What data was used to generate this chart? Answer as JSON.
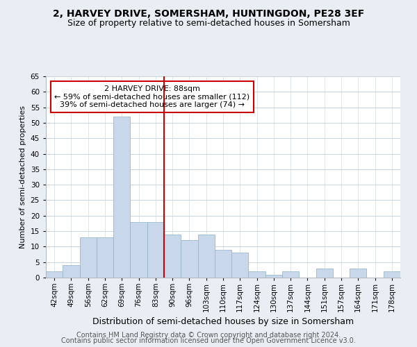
{
  "title1": "2, HARVEY DRIVE, SOMERSHAM, HUNTINGDON, PE28 3EF",
  "title2": "Size of property relative to semi-detached houses in Somersham",
  "xlabel": "Distribution of semi-detached houses by size in Somersham",
  "ylabel": "Number of semi-detached properties",
  "footer1": "Contains HM Land Registry data © Crown copyright and database right 2024.",
  "footer2": "Contains public sector information licensed under the Open Government Licence v3.0.",
  "bin_labels": [
    "42sqm",
    "49sqm",
    "56sqm",
    "62sqm",
    "69sqm",
    "76sqm",
    "83sqm",
    "90sqm",
    "96sqm",
    "103sqm",
    "110sqm",
    "117sqm",
    "124sqm",
    "130sqm",
    "137sqm",
    "144sqm",
    "151sqm",
    "157sqm",
    "164sqm",
    "171sqm",
    "178sqm"
  ],
  "bar_values": [
    2,
    4,
    13,
    13,
    52,
    18,
    18,
    14,
    12,
    14,
    9,
    8,
    2,
    1,
    2,
    0,
    3,
    0,
    3,
    0,
    2
  ],
  "bar_color": "#c8d8ea",
  "bar_edge_color": "#9ab8cc",
  "vline_color": "#cc0000",
  "annotation_title": "2 HARVEY DRIVE: 88sqm",
  "annotation_line1": "← 59% of semi-detached houses are smaller (112)",
  "annotation_line2": "39% of semi-detached houses are larger (74) →",
  "annotation_box_color": "#ffffff",
  "annotation_box_edge": "#cc0000",
  "ylim": [
    0,
    65
  ],
  "yticks": [
    0,
    5,
    10,
    15,
    20,
    25,
    30,
    35,
    40,
    45,
    50,
    55,
    60,
    65
  ],
  "background_color": "#e8eef4",
  "plot_background_color": "#ffffff",
  "grid_color": "#c8d4de",
  "title1_fontsize": 10,
  "title2_fontsize": 9,
  "xlabel_fontsize": 9,
  "ylabel_fontsize": 8,
  "tick_fontsize": 7.5,
  "footer_fontsize": 7
}
